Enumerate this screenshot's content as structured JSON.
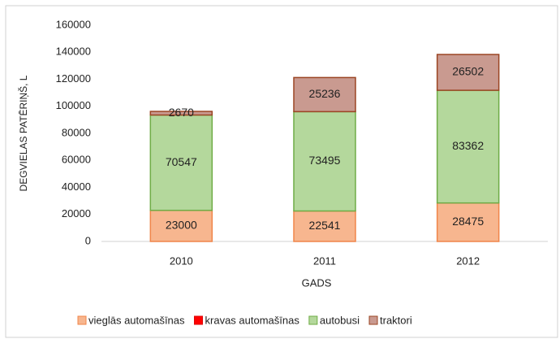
{
  "chart_data": {
    "type": "stacked-bar",
    "y_label": "DEGVIELAS PATĒRIŅŠ, L",
    "x_label": "GADS",
    "categories": [
      "2010",
      "2011",
      "2012"
    ],
    "series": [
      {
        "name": "vieglās automašīnas",
        "color": "#f7b68f",
        "border": "#f0854a",
        "values": [
          23000,
          22541,
          28475
        ]
      },
      {
        "name": "kravas automašīnas",
        "color": "#ff0000",
        "border": "#e00000",
        "values": [
          0,
          0,
          0
        ]
      },
      {
        "name": "autobusi",
        "color": "#b4d89c",
        "border": "#6fac46",
        "values": [
          70547,
          73495,
          83362
        ]
      },
      {
        "name": "traktori",
        "color": "#c99a90",
        "border": "#9b4523",
        "values": [
          2670,
          25236,
          26502
        ]
      }
    ],
    "ylim": [
      0,
      160000
    ],
    "yticks": [
      0,
      20000,
      40000,
      60000,
      80000,
      100000,
      120000,
      140000,
      160000
    ],
    "legend": "bottom"
  }
}
